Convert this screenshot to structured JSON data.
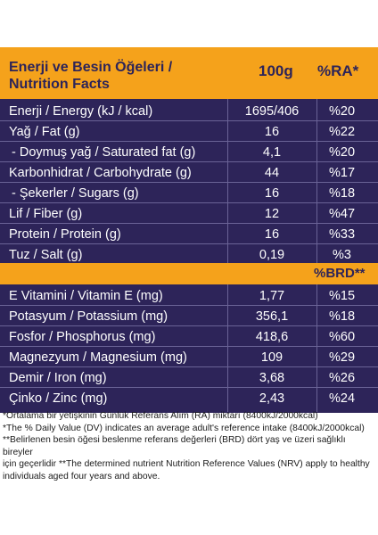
{
  "header": {
    "title_line1": "Enerji ve Besin Öğeleri /",
    "title_line2": "Nutrition Facts",
    "col_amount": "100g",
    "col_ra": "%RA*"
  },
  "rows": [
    {
      "name": "Enerji / Energy (kJ / kcal)",
      "value": "1695/406",
      "pct": "%20"
    },
    {
      "name": "Yağ / Fat (g)",
      "value": "16",
      "pct": "%22"
    },
    {
      "name": "- Doymuş yağ / Saturated fat (g)",
      "value": "4,1",
      "pct": "%20"
    },
    {
      "name": "Karbonhidrat / Carbohydrate (g)",
      "value": "44",
      "pct": "%17"
    },
    {
      "name": "- Şekerler / Sugars (g)",
      "value": "16",
      "pct": "%18"
    },
    {
      "name": "Lif / Fiber (g)",
      "value": "12",
      "pct": "%47"
    },
    {
      "name": "Protein / Protein (g)",
      "value": "16",
      "pct": "%33"
    },
    {
      "name": "Tuz / Salt (g)",
      "value": "0,19",
      "pct": "%3"
    }
  ],
  "brd_label": "%BRD**",
  "rows2": [
    {
      "name": "E Vitamini / Vitamin E (mg)",
      "value": "1,77",
      "pct": "%15"
    },
    {
      "name": "Potasyum / Potassium (mg)",
      "value": "356,1",
      "pct": "%18"
    },
    {
      "name": "Fosfor / Phosphorus (mg)",
      "value": "418,6",
      "pct": "%60"
    },
    {
      "name": "Magnezyum / Magnesium (mg)",
      "value": "109",
      "pct": "%29"
    },
    {
      "name": "Demir / Iron (mg)",
      "value": "3,68",
      "pct": "%26"
    },
    {
      "name": "Çinko / Zinc (mg)",
      "value": "2,43",
      "pct": "%24"
    }
  ],
  "footnotes": {
    "line1": "*Ortalama bir yetişkinin Günlük Referans Alım (RA) miktarı (8400kJ/2000kcal)",
    "line2": "*The % Daily Value (DV) indicates an average adult's reference intake (8400kJ/2000kcal)",
    "line3": "**Belirlenen besin öğesi beslenme referans değerleri (BRD) dört yaş ve üzeri sağlıklı bireyler",
    "line4": "için geçerlidir **The determined nutrient Nutrition Reference Values (NRV) apply to healthy",
    "line5": "individuals aged four years and above."
  },
  "colors": {
    "panel": "#2d2459",
    "accent": "#f5a21b"
  }
}
